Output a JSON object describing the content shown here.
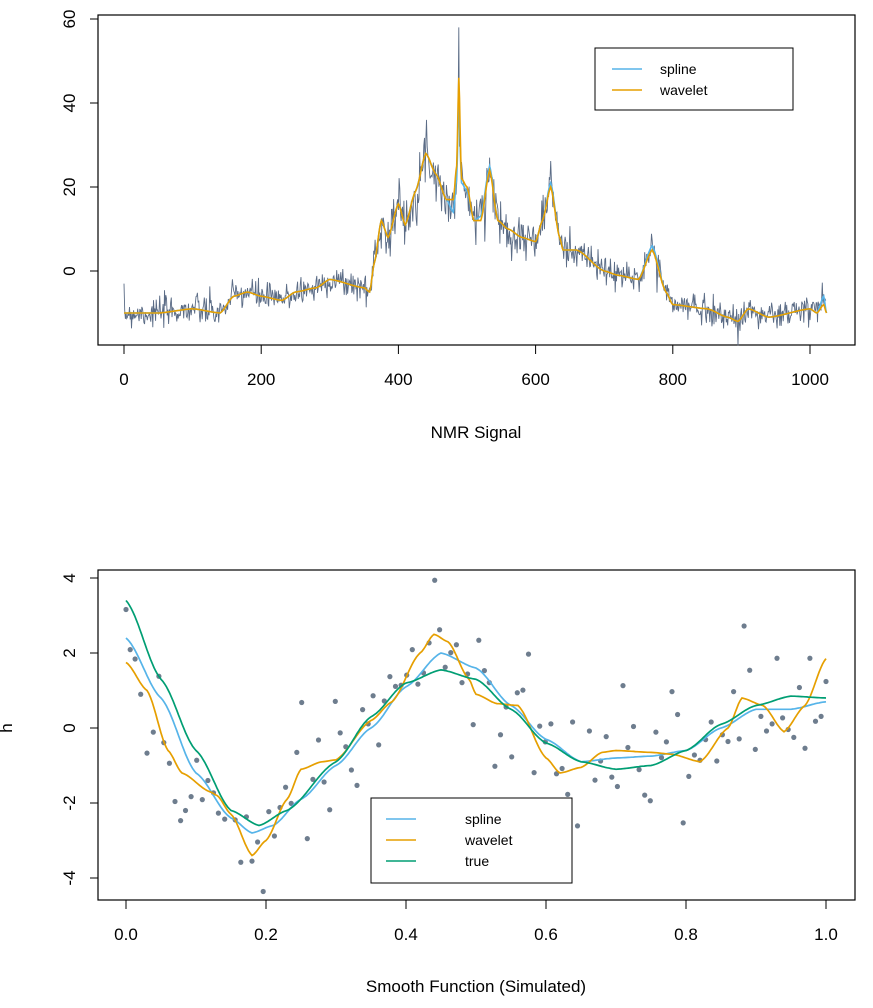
{
  "colors": {
    "spline": "#56B4E9",
    "wavelet": "#E69F00",
    "true": "#009E73",
    "raw": "#5B6C86",
    "points": "#6E7D8E"
  },
  "chart_data": [
    {
      "type": "line",
      "title": "",
      "xlabel": "NMR Signal",
      "ylabel": "",
      "xlim": [
        0,
        1024
      ],
      "ylim": [
        -14,
        60
      ],
      "xticks": [
        "0",
        "200",
        "400",
        "600",
        "800",
        "1000"
      ],
      "xtick_values": [
        0,
        200,
        400,
        600,
        800,
        1000
      ],
      "yticks": [
        "0",
        "20",
        "40",
        "60"
      ],
      "ytick_values": [
        0,
        20,
        40,
        60
      ],
      "legend": {
        "placement": "top-right",
        "entries": [
          "spline",
          "wavelet"
        ]
      },
      "raw_noise_sd": 1.8,
      "raw_spikes": [
        {
          "x": 488,
          "y": 58
        },
        {
          "x": 440,
          "y": 31
        },
        {
          "x": 533,
          "y": 27
        }
      ],
      "series": [
        {
          "name": "spline",
          "x": [
            0,
            50,
            100,
            140,
            160,
            180,
            200,
            230,
            250,
            280,
            300,
            350,
            358,
            365,
            375,
            385,
            400,
            410,
            425,
            440,
            455,
            470,
            480,
            485,
            488,
            492,
            500,
            510,
            520,
            533,
            545,
            560,
            580,
            600,
            610,
            622,
            635,
            640,
            660,
            700,
            720,
            750,
            770,
            790,
            800,
            850,
            880,
            895,
            910,
            940,
            1000,
            1010,
            1020,
            1024
          ],
          "y": [
            -10,
            -10,
            -9,
            -10,
            -6,
            -5,
            -6,
            -7,
            -5,
            -4,
            -2,
            -4,
            -5,
            2,
            12,
            8,
            16,
            11,
            19,
            28,
            23,
            17,
            14,
            22,
            40,
            21,
            19,
            12,
            13,
            25,
            12,
            10,
            8,
            7,
            12,
            21,
            8,
            5,
            5,
            0,
            -1,
            -2,
            6,
            -5,
            -8,
            -9,
            -11,
            -12,
            -9,
            -11,
            -9,
            -10,
            -6,
            -10
          ]
        },
        {
          "name": "wavelet",
          "x": [
            0,
            50,
            100,
            140,
            160,
            180,
            200,
            230,
            250,
            280,
            300,
            350,
            358,
            365,
            375,
            385,
            400,
            410,
            425,
            440,
            455,
            470,
            480,
            485,
            488,
            492,
            500,
            510,
            520,
            533,
            545,
            560,
            580,
            600,
            610,
            622,
            635,
            640,
            660,
            700,
            720,
            750,
            770,
            790,
            800,
            850,
            880,
            895,
            910,
            940,
            1000,
            1010,
            1020,
            1024
          ],
          "y": [
            -10,
            -10,
            -9,
            -10,
            -6,
            -5,
            -6,
            -7,
            -5,
            -4,
            -2,
            -4,
            -5,
            2,
            12,
            8,
            16,
            11,
            19,
            28,
            23,
            17,
            17,
            25,
            46,
            22,
            20,
            12,
            12,
            24,
            12,
            10,
            8,
            7,
            12,
            20,
            8,
            5,
            5,
            0,
            -1,
            -2,
            5,
            -5,
            -8,
            -9,
            -11,
            -12,
            -9,
            -11,
            -9,
            -10,
            -8,
            -10
          ]
        }
      ]
    },
    {
      "type": "scatter",
      "title": "",
      "xlabel": "Smooth Function (Simulated)",
      "ylabel": "h",
      "xlim": [
        0,
        1
      ],
      "ylim": [
        -4.6,
        4.3
      ],
      "xticks": [
        "0.0",
        "0.2",
        "0.4",
        "0.6",
        "0.8",
        "1.0"
      ],
      "xtick_values": [
        0,
        0.2,
        0.4,
        0.6,
        0.8,
        1.0
      ],
      "yticks": [
        "-4",
        "-2",
        "0",
        "2",
        "4"
      ],
      "ytick_values": [
        -4,
        -2,
        0,
        2,
        4
      ],
      "legend": {
        "placement": "bottom-center",
        "entries": [
          "spline",
          "wavelet",
          "true"
        ]
      },
      "points": {
        "x": [
          0.0,
          0.006,
          0.013,
          0.021,
          0.03,
          0.039,
          0.047,
          0.054,
          0.062,
          0.07,
          0.078,
          0.085,
          0.093,
          0.101,
          0.109,
          0.117,
          0.125,
          0.132,
          0.141,
          0.156,
          0.164,
          0.172,
          0.18,
          0.188,
          0.196,
          0.204,
          0.212,
          0.22,
          0.228,
          0.236,
          0.244,
          0.251,
          0.259,
          0.267,
          0.275,
          0.283,
          0.291,
          0.299,
          0.306,
          0.314,
          0.322,
          0.33,
          0.338,
          0.346,
          0.353,
          0.361,
          0.369,
          0.377,
          0.385,
          0.393,
          0.401,
          0.409,
          0.417,
          0.425,
          0.433,
          0.441,
          0.448,
          0.456,
          0.464,
          0.472,
          0.48,
          0.488,
          0.496,
          0.504,
          0.512,
          0.519,
          0.527,
          0.535,
          0.543,
          0.551,
          0.559,
          0.567,
          0.575,
          0.583,
          0.591,
          0.599,
          0.607,
          0.615,
          0.623,
          0.631,
          0.638,
          0.645,
          0.662,
          0.67,
          0.678,
          0.686,
          0.694,
          0.702,
          0.71,
          0.717,
          0.725,
          0.733,
          0.741,
          0.749,
          0.757,
          0.765,
          0.772,
          0.78,
          0.788,
          0.796,
          0.804,
          0.812,
          0.82,
          0.828,
          0.836,
          0.844,
          0.852,
          0.86,
          0.868,
          0.876,
          0.883,
          0.891,
          0.899,
          0.907,
          0.915,
          0.923,
          0.93,
          0.938,
          0.946,
          0.954,
          0.962,
          0.97,
          0.977,
          0.985,
          0.993,
          1.0
        ],
        "y": [
          3.16,
          2.09,
          1.84,
          0.9,
          -0.67,
          -0.11,
          1.38,
          -0.39,
          -0.94,
          -1.96,
          -2.47,
          -2.2,
          -1.83,
          -0.86,
          -1.91,
          -1.4,
          -1.73,
          -2.27,
          -2.43,
          -2.45,
          -3.58,
          -2.37,
          -3.55,
          -3.04,
          -4.36,
          -2.23,
          -2.88,
          -2.12,
          -1.58,
          -2.01,
          -0.65,
          0.68,
          -2.95,
          -1.37,
          -0.32,
          -1.44,
          -2.18,
          0.71,
          -0.13,
          -0.5,
          -1.12,
          -1.53,
          0.49,
          0.11,
          0.86,
          -0.45,
          0.72,
          1.37,
          1.11,
          1.14,
          1.41,
          2.09,
          1.17,
          1.47,
          2.27,
          3.94,
          2.62,
          1.62,
          2.01,
          2.22,
          1.21,
          1.44,
          0.09,
          2.34,
          1.53,
          1.21,
          -1.02,
          -0.18,
          0.56,
          -0.77,
          0.94,
          1.01,
          1.97,
          -1.19,
          0.05,
          -0.37,
          0.11,
          -1.22,
          -1.08,
          -1.77,
          0.16,
          -2.61,
          -0.08,
          -1.39,
          -0.88,
          -0.23,
          -1.31,
          -1.56,
          1.13,
          -0.52,
          0.04,
          -1.11,
          -1.79,
          -1.94,
          -0.11,
          -0.79,
          -0.37,
          0.97,
          0.36,
          -2.53,
          -1.29,
          -0.72,
          -0.86,
          -0.31,
          0.16,
          -0.88,
          -0.18,
          -0.36,
          0.97,
          -0.29,
          2.72,
          1.54,
          -0.57,
          0.31,
          -0.08,
          0.11,
          1.86,
          0.27,
          -0.04,
          -0.25,
          1.08,
          -0.54,
          1.86,
          0.18,
          0.31,
          1.24
        ]
      },
      "series": [
        {
          "name": "spline",
          "x": [
            0,
            0.05,
            0.1,
            0.15,
            0.18,
            0.21,
            0.25,
            0.3,
            0.35,
            0.4,
            0.45,
            0.5,
            0.55,
            0.6,
            0.65,
            0.7,
            0.75,
            0.8,
            0.85,
            0.9,
            0.95,
            1.0
          ],
          "y": [
            2.4,
            0.8,
            -1.2,
            -2.4,
            -2.8,
            -2.6,
            -1.9,
            -1.0,
            0.0,
            1.1,
            2.0,
            1.6,
            0.6,
            -0.3,
            -0.9,
            -0.8,
            -0.75,
            -0.6,
            0.0,
            0.5,
            0.5,
            0.7
          ]
        },
        {
          "name": "wavelet",
          "x": [
            0,
            0.03,
            0.06,
            0.08,
            0.12,
            0.13,
            0.15,
            0.18,
            0.2,
            0.23,
            0.25,
            0.28,
            0.3,
            0.35,
            0.38,
            0.42,
            0.44,
            0.46,
            0.49,
            0.5,
            0.53,
            0.56,
            0.6,
            0.62,
            0.65,
            0.68,
            0.7,
            0.75,
            0.78,
            0.82,
            0.86,
            0.88,
            0.91,
            0.94,
            0.97,
            1.0
          ],
          "y": [
            1.75,
            1.0,
            -0.6,
            -1.2,
            -1.7,
            -1.8,
            -2.3,
            -3.4,
            -3.0,
            -1.9,
            -1.1,
            -0.9,
            -0.85,
            0.2,
            0.7,
            2.0,
            2.5,
            2.3,
            1.3,
            0.9,
            0.65,
            0.6,
            -0.8,
            -1.2,
            -1.05,
            -0.65,
            -0.6,
            -0.65,
            -0.7,
            -0.9,
            0.0,
            0.8,
            0.6,
            -0.1,
            0.6,
            1.85
          ]
        },
        {
          "name": "true",
          "x": [
            0,
            0.05,
            0.1,
            0.15,
            0.19,
            0.23,
            0.3,
            0.35,
            0.4,
            0.45,
            0.5,
            0.55,
            0.6,
            0.65,
            0.7,
            0.75,
            0.8,
            0.85,
            0.9,
            0.95,
            1.0
          ],
          "y": [
            3.4,
            1.3,
            -0.6,
            -2.2,
            -2.6,
            -2.2,
            -0.9,
            0.3,
            1.2,
            1.55,
            1.3,
            0.5,
            -0.4,
            -0.9,
            -1.1,
            -1.0,
            -0.6,
            0.1,
            0.6,
            0.85,
            0.8
          ]
        }
      ]
    }
  ]
}
